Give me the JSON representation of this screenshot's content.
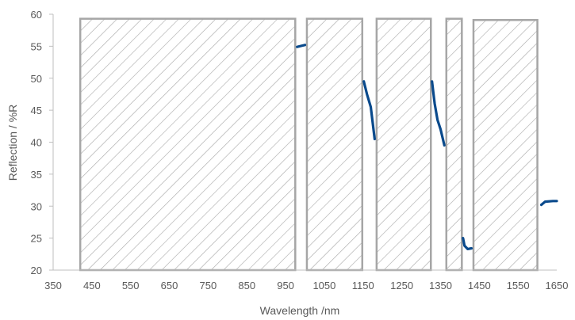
{
  "chart_data": {
    "type": "line",
    "title": "",
    "xlabel": "Wavelength /nm",
    "ylabel": "Reflection / %R",
    "xlim": [
      350,
      1650
    ],
    "ylim": [
      20,
      60
    ],
    "x_ticks": [
      350,
      450,
      550,
      650,
      750,
      850,
      950,
      1050,
      1150,
      1250,
      1350,
      1450,
      1550,
      1650
    ],
    "y_ticks": [
      20,
      25,
      30,
      35,
      40,
      45,
      50,
      55,
      60
    ],
    "x_tick_labels": [
      "350",
      "450",
      "550",
      "650",
      "750",
      "850",
      "950",
      "1050",
      "1150",
      "1250",
      "1350",
      "1450",
      "1550",
      "1650"
    ],
    "y_tick_labels": [
      "20",
      "25",
      "30",
      "35",
      "40",
      "45",
      "50",
      "55",
      "60"
    ],
    "grid": false,
    "line_color": "#0a4a8c",
    "hatch_color": "#a6a6a6",
    "segments": [
      {
        "x": [
          980,
          1000
        ],
        "y": [
          54.9,
          55.2
        ]
      },
      {
        "x": [
          1152,
          1160,
          1165,
          1170,
          1180
        ],
        "y": [
          49.5,
          47.5,
          46.5,
          45.5,
          40.5
        ]
      },
      {
        "x": [
          1328,
          1335,
          1342,
          1350,
          1360
        ],
        "y": [
          49.5,
          46,
          43.5,
          42,
          39.5
        ]
      },
      {
        "x": [
          1408,
          1412,
          1420,
          1430
        ],
        "y": [
          25,
          23.8,
          23.3,
          23.4
        ]
      },
      {
        "x": [
          1610,
          1620,
          1640,
          1650
        ],
        "y": [
          30.2,
          30.7,
          30.8,
          30.8
        ]
      }
    ],
    "excluded_regions": [
      {
        "x0": 420,
        "x1": 975,
        "y_top": 59.3
      },
      {
        "x0": 1005,
        "x1": 1148,
        "y_top": 59.3
      },
      {
        "x0": 1185,
        "x1": 1325,
        "y_top": 59.3
      },
      {
        "x0": 1365,
        "x1": 1405,
        "y_top": 59.3
      },
      {
        "x0": 1435,
        "x1": 1600,
        "y_top": 59.1
      }
    ]
  }
}
